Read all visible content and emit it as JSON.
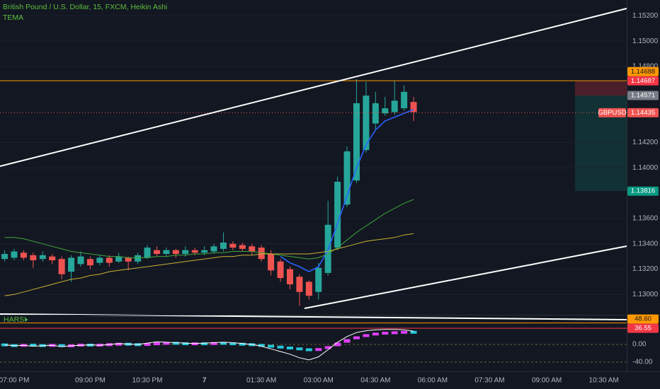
{
  "chart_data": [
    {
      "type": "candlestick",
      "title": "British Pound / U.S. Dollar, 15, FXCM, Heikin Ashi",
      "categories": [
        null,
        "07:00 PM",
        null,
        null,
        null,
        null,
        null,
        null,
        null,
        "09:00 PM",
        null,
        null,
        null,
        null,
        null,
        "10:30 PM",
        null,
        null,
        null,
        null,
        null,
        "7",
        null,
        null,
        null,
        null,
        null,
        "01:30 AM",
        null,
        null,
        null,
        null,
        null,
        "03:00 AM",
        null,
        null,
        null,
        null,
        null,
        "04:30 AM",
        null,
        null,
        null,
        null,
        null,
        "06:00 AM",
        null,
        null,
        null,
        null,
        null,
        "07:30 AM",
        null,
        null,
        null,
        null,
        null,
        "09:00 AM",
        null,
        null,
        null,
        null,
        null,
        "10:30 AM"
      ],
      "open": [
        1.1328,
        1.1329,
        1.1333,
        1.1331,
        1.1328,
        1.133,
        1.1328,
        1.1318,
        1.1324,
        1.1328,
        1.1325,
        1.1329,
        1.1326,
        1.1329,
        1.1326,
        1.1329,
        1.1335,
        1.1332,
        1.1335,
        1.1332,
        1.1335,
        1.1333,
        1.1334,
        1.1336,
        1.134,
        1.1339,
        1.1338,
        1.1337,
        1.1332,
        1.1326,
        1.132,
        1.1314,
        1.131,
        1.1302,
        1.1317,
        1.1337,
        1.1371,
        1.139,
        1.1414,
        1.1435,
        1.1443,
        1.1444,
        1.1447,
        1.1452,
        null,
        null,
        null,
        null,
        null,
        null,
        null,
        null,
        null,
        null,
        null,
        null,
        null,
        null,
        null,
        null,
        null,
        null,
        null,
        null
      ],
      "high": [
        1.1335,
        1.1336,
        1.1335,
        1.1333,
        1.1334,
        1.1332,
        1.133,
        1.1331,
        1.1334,
        1.133,
        1.1331,
        1.1331,
        1.1333,
        1.133,
        1.1333,
        1.1339,
        1.1338,
        1.1337,
        1.1336,
        1.1338,
        1.1337,
        1.1338,
        1.134,
        1.1349,
        1.1342,
        1.1341,
        1.134,
        1.1339,
        1.1335,
        1.1328,
        1.1322,
        1.1316,
        1.1311,
        1.1325,
        1.1374,
        1.1393,
        1.1417,
        1.147,
        1.1468,
        1.146,
        1.1456,
        1.1469,
        1.1465,
        1.1456,
        null,
        null,
        null,
        null,
        null,
        null,
        null,
        null,
        null,
        null,
        null,
        null,
        null,
        null,
        null,
        null,
        null,
        null,
        null,
        null
      ],
      "low": [
        1.1326,
        1.1327,
        1.1327,
        1.1321,
        1.1326,
        1.1324,
        1.1312,
        1.131,
        1.1322,
        1.132,
        1.1323,
        1.1322,
        1.1325,
        1.1319,
        1.1324,
        1.1328,
        1.133,
        1.133,
        1.1329,
        1.133,
        1.1331,
        1.1331,
        1.1332,
        1.1334,
        1.1335,
        1.1334,
        1.1331,
        1.1326,
        1.1315,
        1.131,
        1.1304,
        1.1291,
        1.1296,
        1.1296,
        1.1315,
        1.1335,
        1.1369,
        1.1388,
        1.1412,
        1.143,
        1.1441,
        1.1442,
        1.1445,
        1.1437,
        null,
        null,
        null,
        null,
        null,
        null,
        null,
        null,
        null,
        null,
        null,
        null,
        null,
        null,
        null,
        null,
        null,
        null,
        null,
        null
      ],
      "close": [
        1.1332,
        1.1334,
        1.1329,
        1.1327,
        1.1331,
        1.1327,
        1.1316,
        1.1329,
        1.133,
        1.1323,
        1.1329,
        1.1325,
        1.133,
        1.1326,
        1.1331,
        1.1337,
        1.1332,
        1.1335,
        1.1332,
        1.1335,
        1.1333,
        1.1335,
        1.1338,
        1.1341,
        1.1337,
        1.1336,
        1.1334,
        1.1328,
        1.1319,
        1.1313,
        1.1308,
        1.1302,
        1.1299,
        1.1321,
        1.1355,
        1.1389,
        1.1413,
        1.1451,
        1.1457,
        1.1451,
        1.1447,
        1.1453,
        1.146,
        1.1444,
        null,
        null,
        null,
        null,
        null,
        null,
        null,
        null,
        null,
        null,
        null,
        null,
        null,
        null,
        null,
        null,
        null,
        null,
        null,
        null
      ],
      "up_color": "#26a69a",
      "down_color": "#ef5350",
      "series": [
        {
          "name": "TEMA",
          "color": "#2962ff",
          "values": [
            null,
            null,
            null,
            null,
            null,
            null,
            null,
            null,
            null,
            null,
            null,
            null,
            null,
            null,
            null,
            null,
            null,
            null,
            null,
            null,
            null,
            null,
            null,
            null,
            null,
            null,
            null,
            null,
            null,
            1.133,
            1.1325,
            1.1322,
            1.1318,
            1.1322,
            1.1335,
            1.1356,
            1.1378,
            1.14,
            1.1418,
            1.143,
            1.1437,
            1.144,
            1.1443,
            1.1446,
            null,
            null,
            null,
            null,
            null,
            null,
            null,
            null,
            null,
            null,
            null,
            null,
            null,
            null,
            null,
            null,
            null,
            null,
            null,
            null
          ]
        },
        {
          "color": "#3fa63a",
          "values": [
            1.1345,
            1.1345,
            1.1344,
            1.1342,
            1.134,
            1.1338,
            1.1336,
            1.1334,
            1.1333,
            1.1332,
            1.1331,
            1.133,
            1.133,
            1.1329,
            1.1329,
            1.1329,
            1.133,
            1.133,
            1.1331,
            1.1331,
            1.1332,
            1.1332,
            1.1333,
            1.1333,
            1.1334,
            1.1334,
            1.1334,
            1.1333,
            1.1332,
            1.1331,
            1.133,
            1.1329,
            1.1328,
            1.1329,
            1.1332,
            1.1337,
            1.1343,
            1.1349,
            1.1354,
            1.1359,
            1.1364,
            1.1368,
            1.1372,
            1.1375,
            null,
            null,
            null,
            null,
            null,
            null,
            null,
            null,
            null,
            null,
            null,
            null,
            null,
            null,
            null,
            null,
            null,
            null,
            null,
            null
          ]
        },
        {
          "color": "#c9b22f",
          "values": [
            1.1299,
            1.13,
            1.1302,
            1.1304,
            1.1306,
            1.1308,
            1.131,
            1.1312,
            1.1313,
            1.1315,
            1.1316,
            1.1318,
            1.1319,
            1.132,
            1.1321,
            1.1322,
            1.1323,
            1.1324,
            1.1325,
            1.1326,
            1.1327,
            1.1328,
            1.1329,
            1.133,
            1.133,
            1.1331,
            1.1331,
            1.1332,
            1.1332,
            1.1332,
            1.1332,
            1.1332,
            1.1332,
            1.1333,
            1.1334,
            1.1336,
            1.1338,
            1.134,
            1.1342,
            1.1343,
            1.1344,
            1.1345,
            1.1347,
            1.1348,
            null,
            null,
            null,
            null,
            null,
            null,
            null,
            null,
            null,
            null,
            null,
            null,
            null,
            null,
            null,
            null,
            null,
            null,
            null,
            null
          ]
        }
      ],
      "ylim": [
        1.1284,
        1.15325
      ],
      "yticks": [
        {
          "value": 1.152,
          "label": "1.15200"
        },
        {
          "value": 1.15,
          "label": "1.15000"
        },
        {
          "value": 1.148,
          "label": "1.14800"
        },
        {
          "value": 1.142,
          "label": "1.14200"
        },
        {
          "value": 1.14,
          "label": "1.14000"
        },
        {
          "value": 1.136,
          "label": "1.13600"
        },
        {
          "value": 1.134,
          "label": "1.13400"
        },
        {
          "value": 1.132,
          "label": "1.13200"
        },
        {
          "value": 1.13,
          "label": "1.13000"
        }
      ],
      "grid": true,
      "price_labels": [
        {
          "value": 1.14688,
          "label": "1.14688",
          "color": "#ff9800",
          "line": "solid"
        },
        {
          "value": 1.14687,
          "label": "1.14687",
          "color": "#f23645"
        },
        {
          "value": 1.14571,
          "label": "1.14571",
          "color": "#787b86"
        },
        {
          "name": "GBPUSD",
          "value": 1.14435,
          "label": "1.14435",
          "color": "#ef5350",
          "line": "dotted"
        },
        {
          "value": 1.13816,
          "label": "1.13816",
          "color": "#089981"
        }
      ]
    },
    {
      "type": "candlestick",
      "name": "HARSI",
      "open": [
        0,
        -2,
        -3,
        -1,
        -2,
        -3,
        -1,
        -4,
        -2,
        -1,
        -2,
        -1,
        0,
        1,
        0,
        -1,
        1,
        2,
        3,
        2,
        1,
        2,
        1,
        3,
        2,
        1,
        0,
        -1,
        -3,
        -5,
        -7,
        -9,
        -11,
        -13,
        -10,
        -4,
        4,
        12,
        18,
        22,
        25,
        26,
        27,
        28,
        null,
        null,
        null,
        null,
        null,
        null,
        null,
        null,
        null,
        null,
        null,
        null,
        null,
        null,
        null,
        null,
        null,
        null,
        null,
        null
      ],
      "close": [
        -2,
        -3,
        -1,
        -2,
        -3,
        -1,
        -4,
        -2,
        -1,
        -2,
        -1,
        0,
        1,
        0,
        -1,
        1,
        2,
        3,
        2,
        1,
        2,
        1,
        3,
        2,
        1,
        0,
        -1,
        -3,
        -5,
        -7,
        -9,
        -11,
        -13,
        -10,
        -4,
        4,
        12,
        18,
        22,
        25,
        26,
        27,
        28,
        27,
        null,
        null,
        null,
        null,
        null,
        null,
        null,
        null,
        null,
        null,
        null,
        null,
        null,
        null,
        null,
        null,
        null,
        null,
        null,
        null
      ],
      "up_color": "#e040fb",
      "down_color": "#26c6da",
      "series": [
        {
          "color": "#ffffff",
          "values": [
            -1,
            -3,
            -2,
            -4,
            -3,
            -2,
            -5,
            -3,
            -2,
            -1,
            -2,
            0,
            2,
            1,
            0,
            3,
            6,
            5,
            4,
            3,
            2,
            3,
            4,
            5,
            4,
            2,
            0,
            -4,
            -10,
            -16,
            -22,
            -30,
            -35,
            -28,
            -12,
            5,
            18,
            27,
            31,
            33,
            34,
            34,
            33,
            30,
            null,
            null,
            null,
            null,
            null,
            null,
            null,
            null,
            null,
            null,
            null,
            null,
            null,
            null,
            null,
            null,
            null,
            null,
            null,
            null
          ]
        }
      ],
      "ylim": [
        -60.8,
        67.2
      ],
      "yticks": [
        {
          "value": 0,
          "label": "0.00"
        },
        {
          "value": -40,
          "label": "-40.00"
        }
      ],
      "levels": [
        {
          "value": 48.6,
          "label": "48.60",
          "color": "#ff9800"
        },
        {
          "value": 36.55,
          "label": "36.55",
          "color": "#f23645"
        }
      ]
    }
  ]
}
